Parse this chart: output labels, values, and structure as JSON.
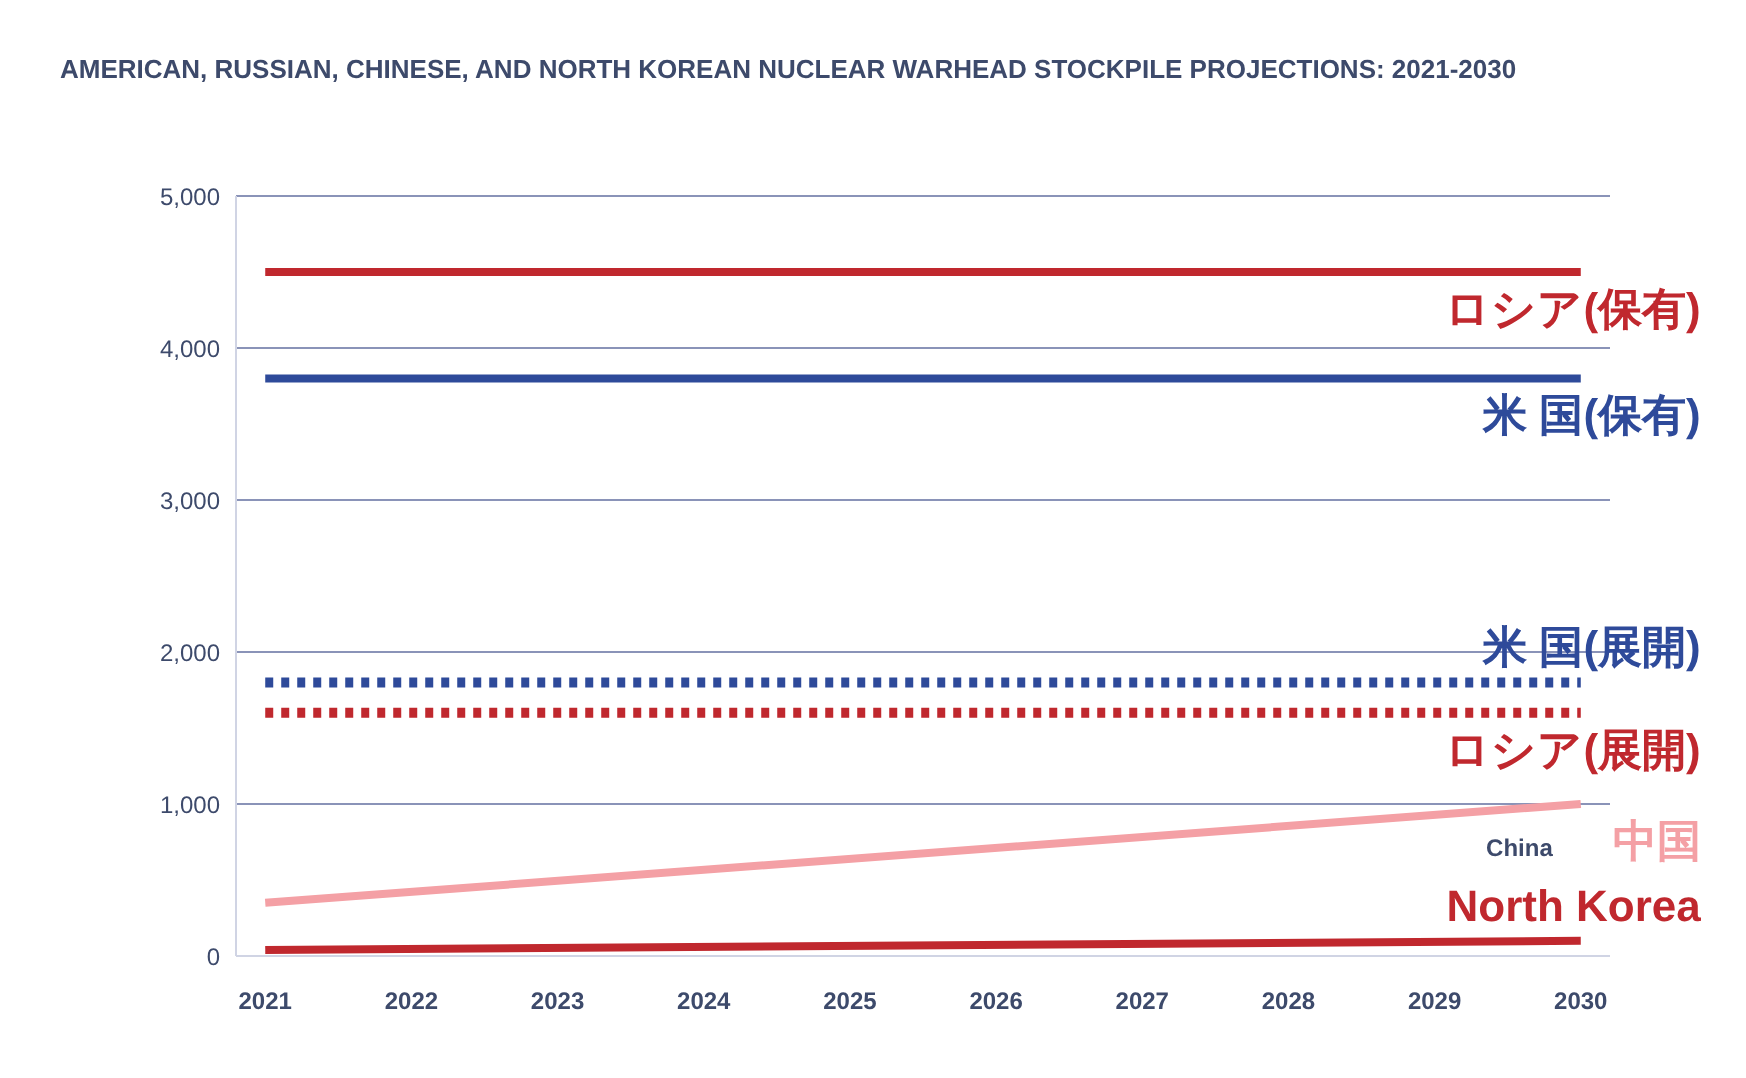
{
  "chart_data": {
    "type": "line",
    "title": "AMERICAN, RUSSIAN, CHINESE, AND NORTH KOREAN NUCLEAR WARHEAD STOCKPILE PROJECTIONS: 2021-2030",
    "x": [
      2021,
      2030
    ],
    "series": [
      {
        "name": "ロシア(保有)",
        "color": "#c0282e",
        "values": [
          4500,
          4500
        ]
      },
      {
        "name": "米 国(保有)",
        "color": "#2e4a9a",
        "values": [
          3800,
          3800
        ]
      },
      {
        "name": "米 国(展開)",
        "color": "#2e4a9a",
        "values": [
          1800,
          1800
        ],
        "line_style": "dotted"
      },
      {
        "name": "ロシア(展開)",
        "color": "#c0282e",
        "values": [
          1600,
          1600
        ],
        "line_style": "dotted"
      },
      {
        "name": "中国",
        "color": "#f4a0a5",
        "values": [
          350,
          1000
        ]
      },
      {
        "name": "North Korea",
        "color": "#c0282e",
        "values": [
          40,
          100
        ]
      }
    ],
    "annotations": [
      {
        "text": "China",
        "x": 2030,
        "y": 1000
      }
    ],
    "xlim": [
      2020.8,
      2030.2
    ],
    "xticks": [
      2021,
      2022,
      2023,
      2024,
      2025,
      2026,
      2027,
      2028,
      2029,
      2030
    ],
    "ylim": [
      0,
      5000
    ],
    "yticks": [
      {
        "value": 0,
        "label": "0"
      },
      {
        "value": 1000,
        "label": "1,000"
      },
      {
        "value": 2000,
        "label": "2,000"
      },
      {
        "value": 3000,
        "label": "3,000"
      },
      {
        "value": 4000,
        "label": "4,000"
      },
      {
        "value": 5000,
        "label": "5,000"
      }
    ],
    "grid": "y",
    "legend": false,
    "marker": "none",
    "line_style": "solid"
  }
}
